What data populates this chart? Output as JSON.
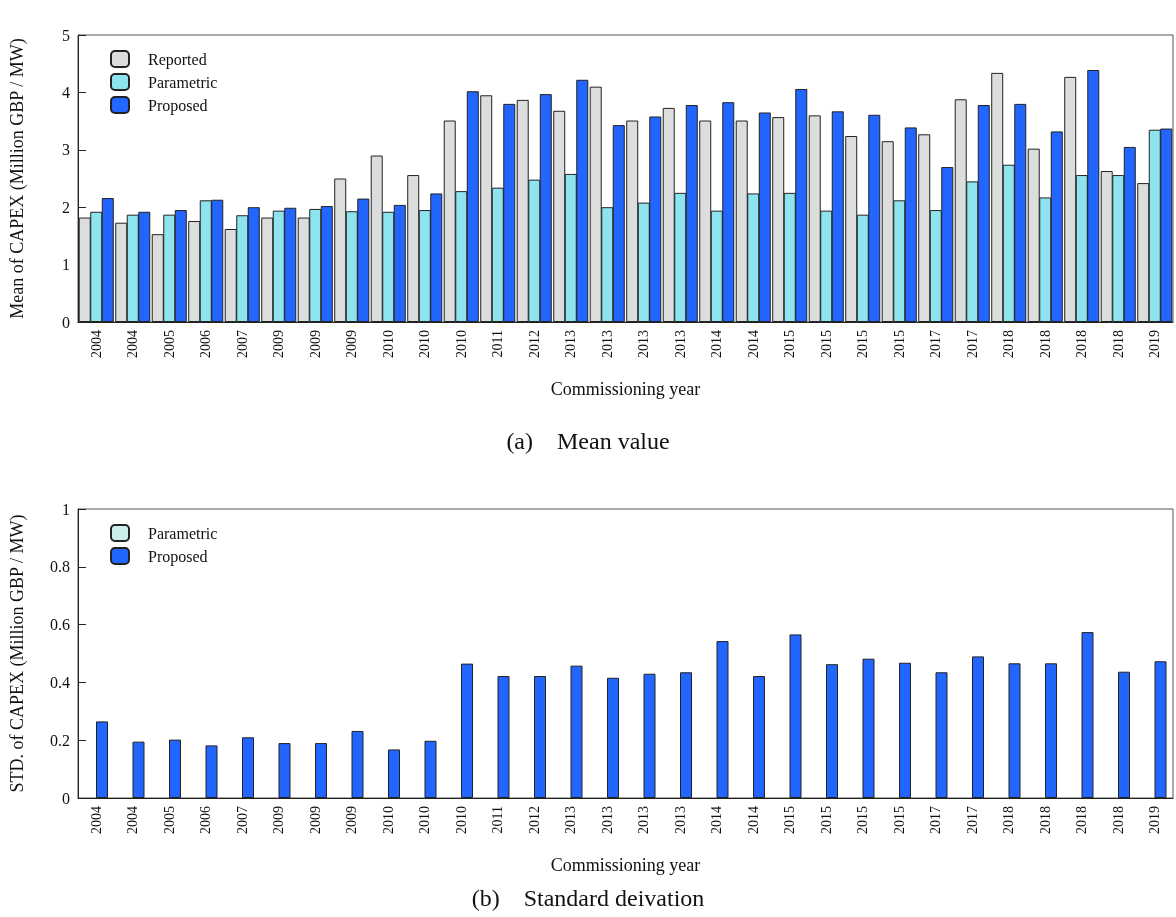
{
  "chart_data": [
    {
      "type": "bar",
      "title": "(a)    Mean value",
      "xlabel": "Commissioning year",
      "ylabel": "Mean of CAPEX (Million GBP / MW)",
      "categories": [
        "2004",
        "2004",
        "2005",
        "2006",
        "2007",
        "2009",
        "2009",
        "2009",
        "2010",
        "2010",
        "2010",
        "2011",
        "2012",
        "2013",
        "2013",
        "2013",
        "2013",
        "2014",
        "2014",
        "2015",
        "2015",
        "2015",
        "2015",
        "2017",
        "2017",
        "2018",
        "2018",
        "2018",
        "2018",
        "2019"
      ],
      "series": [
        {
          "name": "Reported",
          "color": "#dcdedd",
          "values": [
            1.82,
            1.73,
            1.53,
            1.76,
            1.62,
            1.82,
            1.82,
            2.5,
            2.9,
            2.56,
            3.51,
            3.95,
            3.87,
            3.68,
            4.1,
            3.51,
            3.73,
            3.51,
            3.51,
            3.57,
            3.6,
            3.24,
            3.15,
            3.27,
            3.88,
            4.34,
            3.02,
            4.27,
            2.63,
            2.42
          ]
        },
        {
          "name": "Parametric",
          "color": "#8ee4ee",
          "values": [
            1.92,
            1.87,
            1.87,
            2.12,
            1.86,
            1.94,
            1.97,
            1.93,
            1.92,
            1.95,
            2.28,
            2.34,
            2.48,
            2.58,
            2.0,
            2.08,
            2.25,
            1.94,
            2.24,
            2.25,
            1.94,
            1.87,
            2.12,
            1.95,
            2.45,
            2.74,
            2.17,
            2.56,
            2.56,
            3.35
          ]
        },
        {
          "name": "Proposed",
          "color": "#2266ff",
          "values": [
            2.16,
            1.92,
            1.95,
            2.13,
            2.0,
            1.99,
            2.02,
            2.15,
            2.04,
            2.24,
            4.02,
            3.8,
            3.97,
            4.22,
            3.43,
            3.58,
            3.78,
            3.83,
            3.65,
            4.06,
            3.67,
            3.61,
            3.39,
            2.7,
            3.78,
            3.8,
            3.32,
            4.39,
            3.05,
            3.37
          ]
        }
      ],
      "ylim": [
        0,
        5
      ],
      "yticks": [
        0,
        1,
        2,
        3,
        4,
        5
      ],
      "grid": false,
      "legend": "top left"
    },
    {
      "type": "bar",
      "title": "(b)    Standard deivation",
      "xlabel": "Commissioning year",
      "ylabel": "STD. of CAPEX (Million GBP / MW)",
      "categories": [
        "2004",
        "2004",
        "2005",
        "2006",
        "2007",
        "2009",
        "2009",
        "2009",
        "2010",
        "2010",
        "2010",
        "2011",
        "2012",
        "2013",
        "2013",
        "2013",
        "2013",
        "2014",
        "2014",
        "2015",
        "2015",
        "2015",
        "2015",
        "2017",
        "2017",
        "2018",
        "2018",
        "2018",
        "2018",
        "2019"
      ],
      "series": [
        {
          "name": "Parametric",
          "color": "#cdeeea",
          "values": [
            null,
            null,
            null,
            null,
            null,
            null,
            null,
            null,
            null,
            null,
            null,
            null,
            null,
            null,
            null,
            null,
            null,
            null,
            null,
            null,
            null,
            null,
            null,
            null,
            null,
            null,
            null,
            null,
            null,
            null
          ]
        },
        {
          "name": "Proposed",
          "color": "#2266ff",
          "values": [
            0.265,
            0.195,
            0.202,
            0.182,
            0.21,
            0.19,
            0.19,
            0.232,
            0.168,
            0.198,
            0.465,
            0.422,
            0.422,
            0.458,
            0.416,
            0.43,
            0.435,
            0.543,
            0.422,
            0.566,
            0.463,
            0.482,
            0.468,
            0.435,
            0.49,
            0.466,
            0.466,
            0.574,
            0.437,
            0.473
          ]
        }
      ],
      "ylim": [
        0,
        1
      ],
      "yticks": [
        0,
        0.2,
        0.4,
        0.6,
        0.8,
        1
      ],
      "grid": false,
      "legend": "top left"
    }
  ]
}
